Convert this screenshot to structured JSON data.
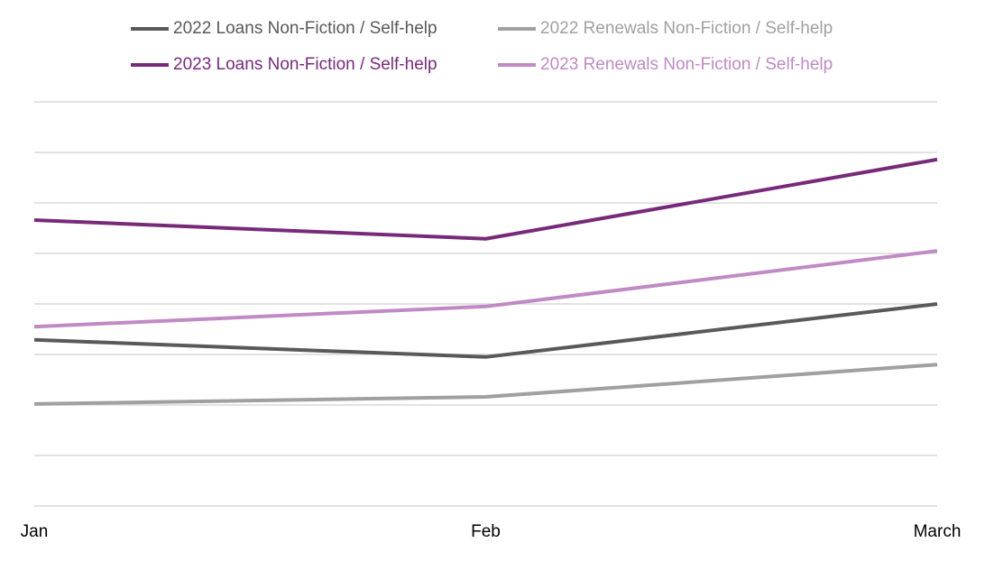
{
  "chart_data": {
    "type": "line",
    "categories": [
      "Jan",
      "Feb",
      "March"
    ],
    "series": [
      {
        "name": "2022 Loans Non-Fiction / Self-help",
        "color": "#595959",
        "values": [
          3.29,
          2.95,
          4.0
        ]
      },
      {
        "name": "2022 Renewals Non-Fiction / Self-help",
        "color": "#a0a0a0",
        "values": [
          2.02,
          2.16,
          2.8
        ]
      },
      {
        "name": "2023 Loans Non-Fiction / Self-help",
        "color": "#772a7a",
        "values": [
          5.66,
          5.29,
          6.86
        ]
      },
      {
        "name": "2023 Renewals Non-Fiction / Self-help",
        "color": "#c08ac4",
        "values": [
          3.55,
          3.95,
          5.05
        ]
      }
    ],
    "ylim": [
      0,
      8
    ],
    "yticks": [
      0,
      1,
      2,
      3,
      4,
      5,
      6,
      7,
      8
    ],
    "grid": true
  }
}
